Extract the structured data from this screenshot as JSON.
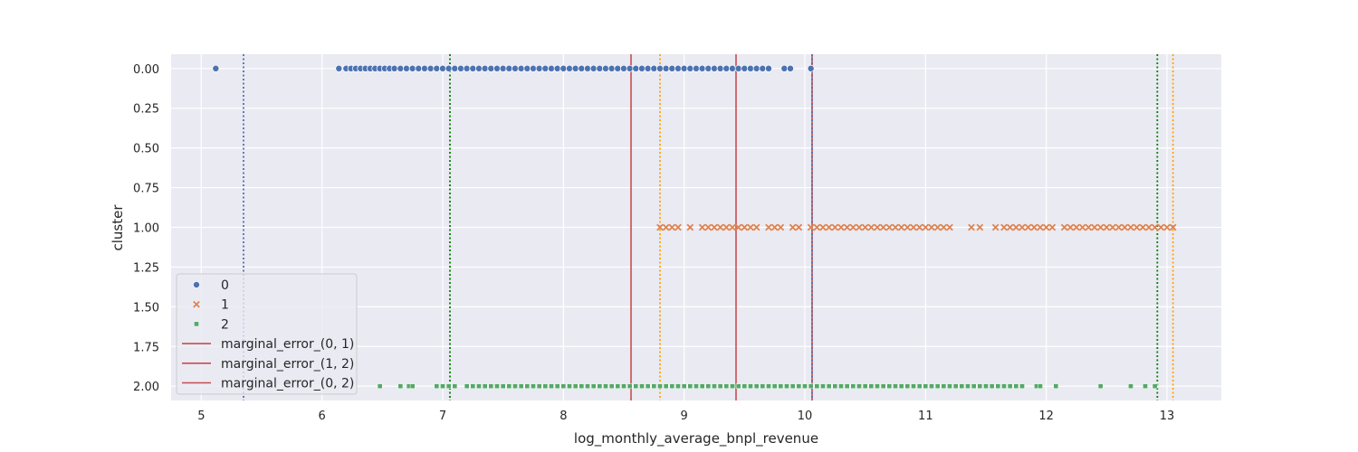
{
  "chart_data": {
    "type": "scatter",
    "title": "",
    "xlabel": "log_monthly_average_bnpl_revenue",
    "ylabel": "cluster",
    "xlim": [
      4.75,
      13.45
    ],
    "ylim": [
      2.09,
      -0.09
    ],
    "y_inverted": true,
    "grid": true,
    "background": "#EAEAF2",
    "xticks": [
      5,
      6,
      7,
      8,
      9,
      10,
      11,
      12,
      13
    ],
    "xtick_labels": [
      "5",
      "6",
      "7",
      "8",
      "9",
      "10",
      "11",
      "12",
      "13"
    ],
    "yticks": [
      0.0,
      0.25,
      0.5,
      0.75,
      1.0,
      1.25,
      1.5,
      1.75,
      2.0
    ],
    "ytick_labels": [
      "0.00",
      "0.25",
      "0.50",
      "0.75",
      "1.00",
      "1.25",
      "1.50",
      "1.75",
      "2.00"
    ],
    "legend_placement": "lower-left",
    "series": [
      {
        "name": "0",
        "marker": "circle",
        "color": "#4C72B0",
        "y": 0,
        "x": [
          5.12,
          6.14,
          6.2,
          6.24,
          6.28,
          6.32,
          6.36,
          6.4,
          6.44,
          6.48,
          6.52,
          6.56,
          6.6,
          6.65,
          6.7,
          6.75,
          6.8,
          6.85,
          6.9,
          6.95,
          7.0,
          7.05,
          7.1,
          7.15,
          7.2,
          7.25,
          7.3,
          7.35,
          7.4,
          7.45,
          7.5,
          7.55,
          7.6,
          7.65,
          7.7,
          7.75,
          7.8,
          7.85,
          7.9,
          7.95,
          8.0,
          8.05,
          8.1,
          8.15,
          8.2,
          8.25,
          8.3,
          8.35,
          8.4,
          8.45,
          8.5,
          8.55,
          8.6,
          8.65,
          8.7,
          8.75,
          8.8,
          8.85,
          8.9,
          8.95,
          9.0,
          9.05,
          9.1,
          9.15,
          9.2,
          9.25,
          9.3,
          9.35,
          9.4,
          9.45,
          9.5,
          9.55,
          9.6,
          9.65,
          9.7,
          9.83,
          9.88,
          10.05
        ]
      },
      {
        "name": "1",
        "marker": "x",
        "color": "#DD8452",
        "y": 1,
        "x": [
          8.8,
          8.85,
          8.9,
          8.95,
          9.05,
          9.15,
          9.2,
          9.25,
          9.3,
          9.35,
          9.4,
          9.45,
          9.5,
          9.55,
          9.6,
          9.7,
          9.75,
          9.8,
          9.9,
          9.95,
          10.05,
          10.1,
          10.15,
          10.2,
          10.25,
          10.3,
          10.35,
          10.4,
          10.45,
          10.5,
          10.55,
          10.6,
          10.65,
          10.7,
          10.75,
          10.8,
          10.85,
          10.9,
          10.95,
          11.0,
          11.05,
          11.1,
          11.15,
          11.2,
          11.38,
          11.45,
          11.58,
          11.65,
          11.7,
          11.75,
          11.8,
          11.85,
          11.9,
          11.95,
          12.0,
          12.05,
          12.15,
          12.2,
          12.25,
          12.3,
          12.35,
          12.4,
          12.45,
          12.5,
          12.55,
          12.6,
          12.65,
          12.7,
          12.75,
          12.8,
          12.85,
          12.9,
          12.95,
          13.0,
          13.05
        ]
      },
      {
        "name": "2",
        "marker": "square",
        "color": "#55A868",
        "y": 2,
        "x": [
          6.48,
          6.65,
          6.72,
          6.75,
          6.95,
          7.0,
          7.05,
          7.1,
          7.2,
          7.25,
          7.3,
          7.35,
          7.4,
          7.45,
          7.5,
          7.55,
          7.6,
          7.65,
          7.7,
          7.75,
          7.8,
          7.85,
          7.9,
          7.95,
          8.0,
          8.05,
          8.1,
          8.15,
          8.2,
          8.25,
          8.3,
          8.35,
          8.4,
          8.45,
          8.5,
          8.55,
          8.6,
          8.65,
          8.7,
          8.75,
          8.8,
          8.85,
          8.9,
          8.95,
          9.0,
          9.05,
          9.1,
          9.15,
          9.2,
          9.25,
          9.3,
          9.35,
          9.4,
          9.45,
          9.5,
          9.55,
          9.6,
          9.65,
          9.7,
          9.75,
          9.8,
          9.85,
          9.9,
          9.95,
          10.0,
          10.05,
          10.1,
          10.15,
          10.2,
          10.25,
          10.3,
          10.35,
          10.4,
          10.45,
          10.5,
          10.55,
          10.6,
          10.65,
          10.7,
          10.75,
          10.8,
          10.85,
          10.9,
          10.95,
          11.0,
          11.05,
          11.1,
          11.15,
          11.2,
          11.25,
          11.3,
          11.35,
          11.4,
          11.45,
          11.5,
          11.55,
          11.6,
          11.65,
          11.7,
          11.75,
          11.8,
          11.92,
          11.95,
          12.08,
          12.45,
          12.7,
          12.82,
          12.9
        ]
      }
    ],
    "vertical_lines": [
      {
        "name": "marginal_error_(0, 1)",
        "x": 8.56,
        "color": "#C44E52",
        "style": "solid",
        "in_legend": true
      },
      {
        "name": "marginal_error_(1, 2)",
        "x": 9.43,
        "color": "#C44E52",
        "style": "solid",
        "in_legend": true
      },
      {
        "name": "marginal_error_(0, 2)",
        "x": 10.06,
        "color": "#C44E52",
        "style": "solid",
        "in_legend": true
      },
      {
        "x": 5.35,
        "color": "#4C72B0",
        "style": "dotted",
        "in_legend": false
      },
      {
        "x": 10.06,
        "color": "#4C72B0",
        "style": "dotted",
        "in_legend": false
      },
      {
        "x": 8.8,
        "color": "#FFA500",
        "style": "dotted",
        "in_legend": false
      },
      {
        "x": 13.05,
        "color": "#FFA500",
        "style": "dotted",
        "in_legend": false
      },
      {
        "x": 7.06,
        "color": "#008000",
        "style": "dotted",
        "in_legend": false
      },
      {
        "x": 12.92,
        "color": "#008000",
        "style": "dotted",
        "in_legend": false
      }
    ],
    "legend": [
      {
        "label": "0",
        "kind": "marker",
        "marker": "circle",
        "color": "#4C72B0"
      },
      {
        "label": "1",
        "kind": "marker",
        "marker": "x",
        "color": "#DD8452"
      },
      {
        "label": "2",
        "kind": "marker",
        "marker": "square",
        "color": "#55A868"
      },
      {
        "label": "marginal_error_(0, 1)",
        "kind": "line",
        "color": "#C44E52"
      },
      {
        "label": "marginal_error_(1, 2)",
        "kind": "line",
        "color": "#C44E52"
      },
      {
        "label": "marginal_error_(0, 2)",
        "kind": "line",
        "color": "#C44E52"
      }
    ]
  }
}
